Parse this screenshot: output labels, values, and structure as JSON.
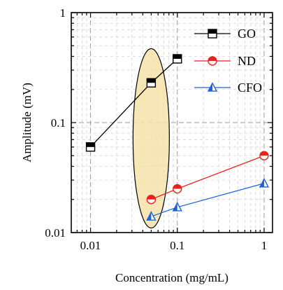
{
  "chart_data": {
    "type": "scatter",
    "title": "",
    "xlabel": "Concentration (mg/mL)",
    "ylabel": "Amplitude (mV)",
    "xscale": "log",
    "yscale": "log",
    "xlim": [
      0.006,
      1.25
    ],
    "ylim": [
      0.01,
      1
    ],
    "x_ticks": [
      0.01,
      0.1,
      1
    ],
    "x_tick_labels": [
      "0.01",
      "0.1",
      "1"
    ],
    "y_ticks": [
      0.01,
      0.1,
      1
    ],
    "y_tick_labels": [
      "0.01",
      "0.1",
      "1"
    ],
    "grid": true,
    "legend_position": "top-right",
    "highlight_ellipse": {
      "x_center": 0.05,
      "y_min": 0.011,
      "y_max": 0.47,
      "color": "#f6e3a9"
    },
    "series": [
      {
        "name": "GO",
        "color": "#000000",
        "marker": "half-filled-square",
        "x": [
          0.01,
          0.05,
          0.1
        ],
        "y": [
          0.06,
          0.23,
          0.38
        ]
      },
      {
        "name": "ND",
        "color": "#e8231f",
        "marker": "half-filled-circle",
        "x": [
          0.05,
          0.1,
          1
        ],
        "y": [
          0.02,
          0.025,
          0.05
        ]
      },
      {
        "name": "CFO",
        "color": "#1f64d6",
        "marker": "half-filled-triangle",
        "x": [
          0.05,
          0.1,
          1
        ],
        "y": [
          0.014,
          0.017,
          0.028
        ]
      }
    ]
  }
}
